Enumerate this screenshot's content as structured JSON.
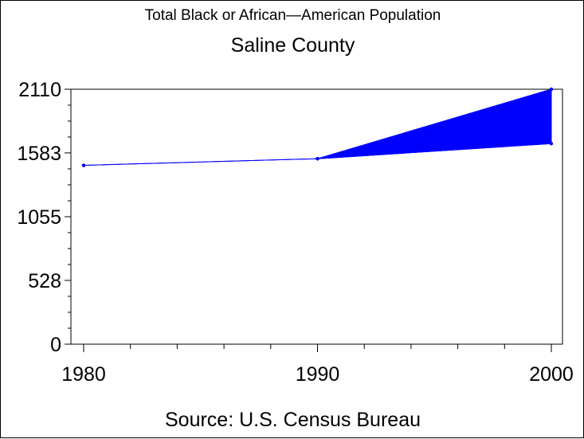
{
  "chart_data": {
    "type": "line",
    "title": "Total Black or African—American Population",
    "subtitle": "Saline County",
    "source": "Source: U.S. Census Bureau",
    "x": [
      1980,
      1990,
      2000
    ],
    "xlim": [
      1980,
      2000
    ],
    "ylim": [
      0,
      2110
    ],
    "y_ticks": [
      0,
      528,
      1055,
      1583,
      2110
    ],
    "x_ticks": [
      1980,
      1990,
      2000
    ],
    "series": [
      {
        "values": [
          1480,
          1535,
          2110
        ],
        "color": "#0000ff"
      },
      {
        "values": [
          1480,
          1535,
          1660
        ],
        "color": "#0000ff"
      }
    ],
    "fill_between": {
      "from_x": 1990,
      "to_x": 2000,
      "color": "#0000ff"
    },
    "grid": false
  }
}
